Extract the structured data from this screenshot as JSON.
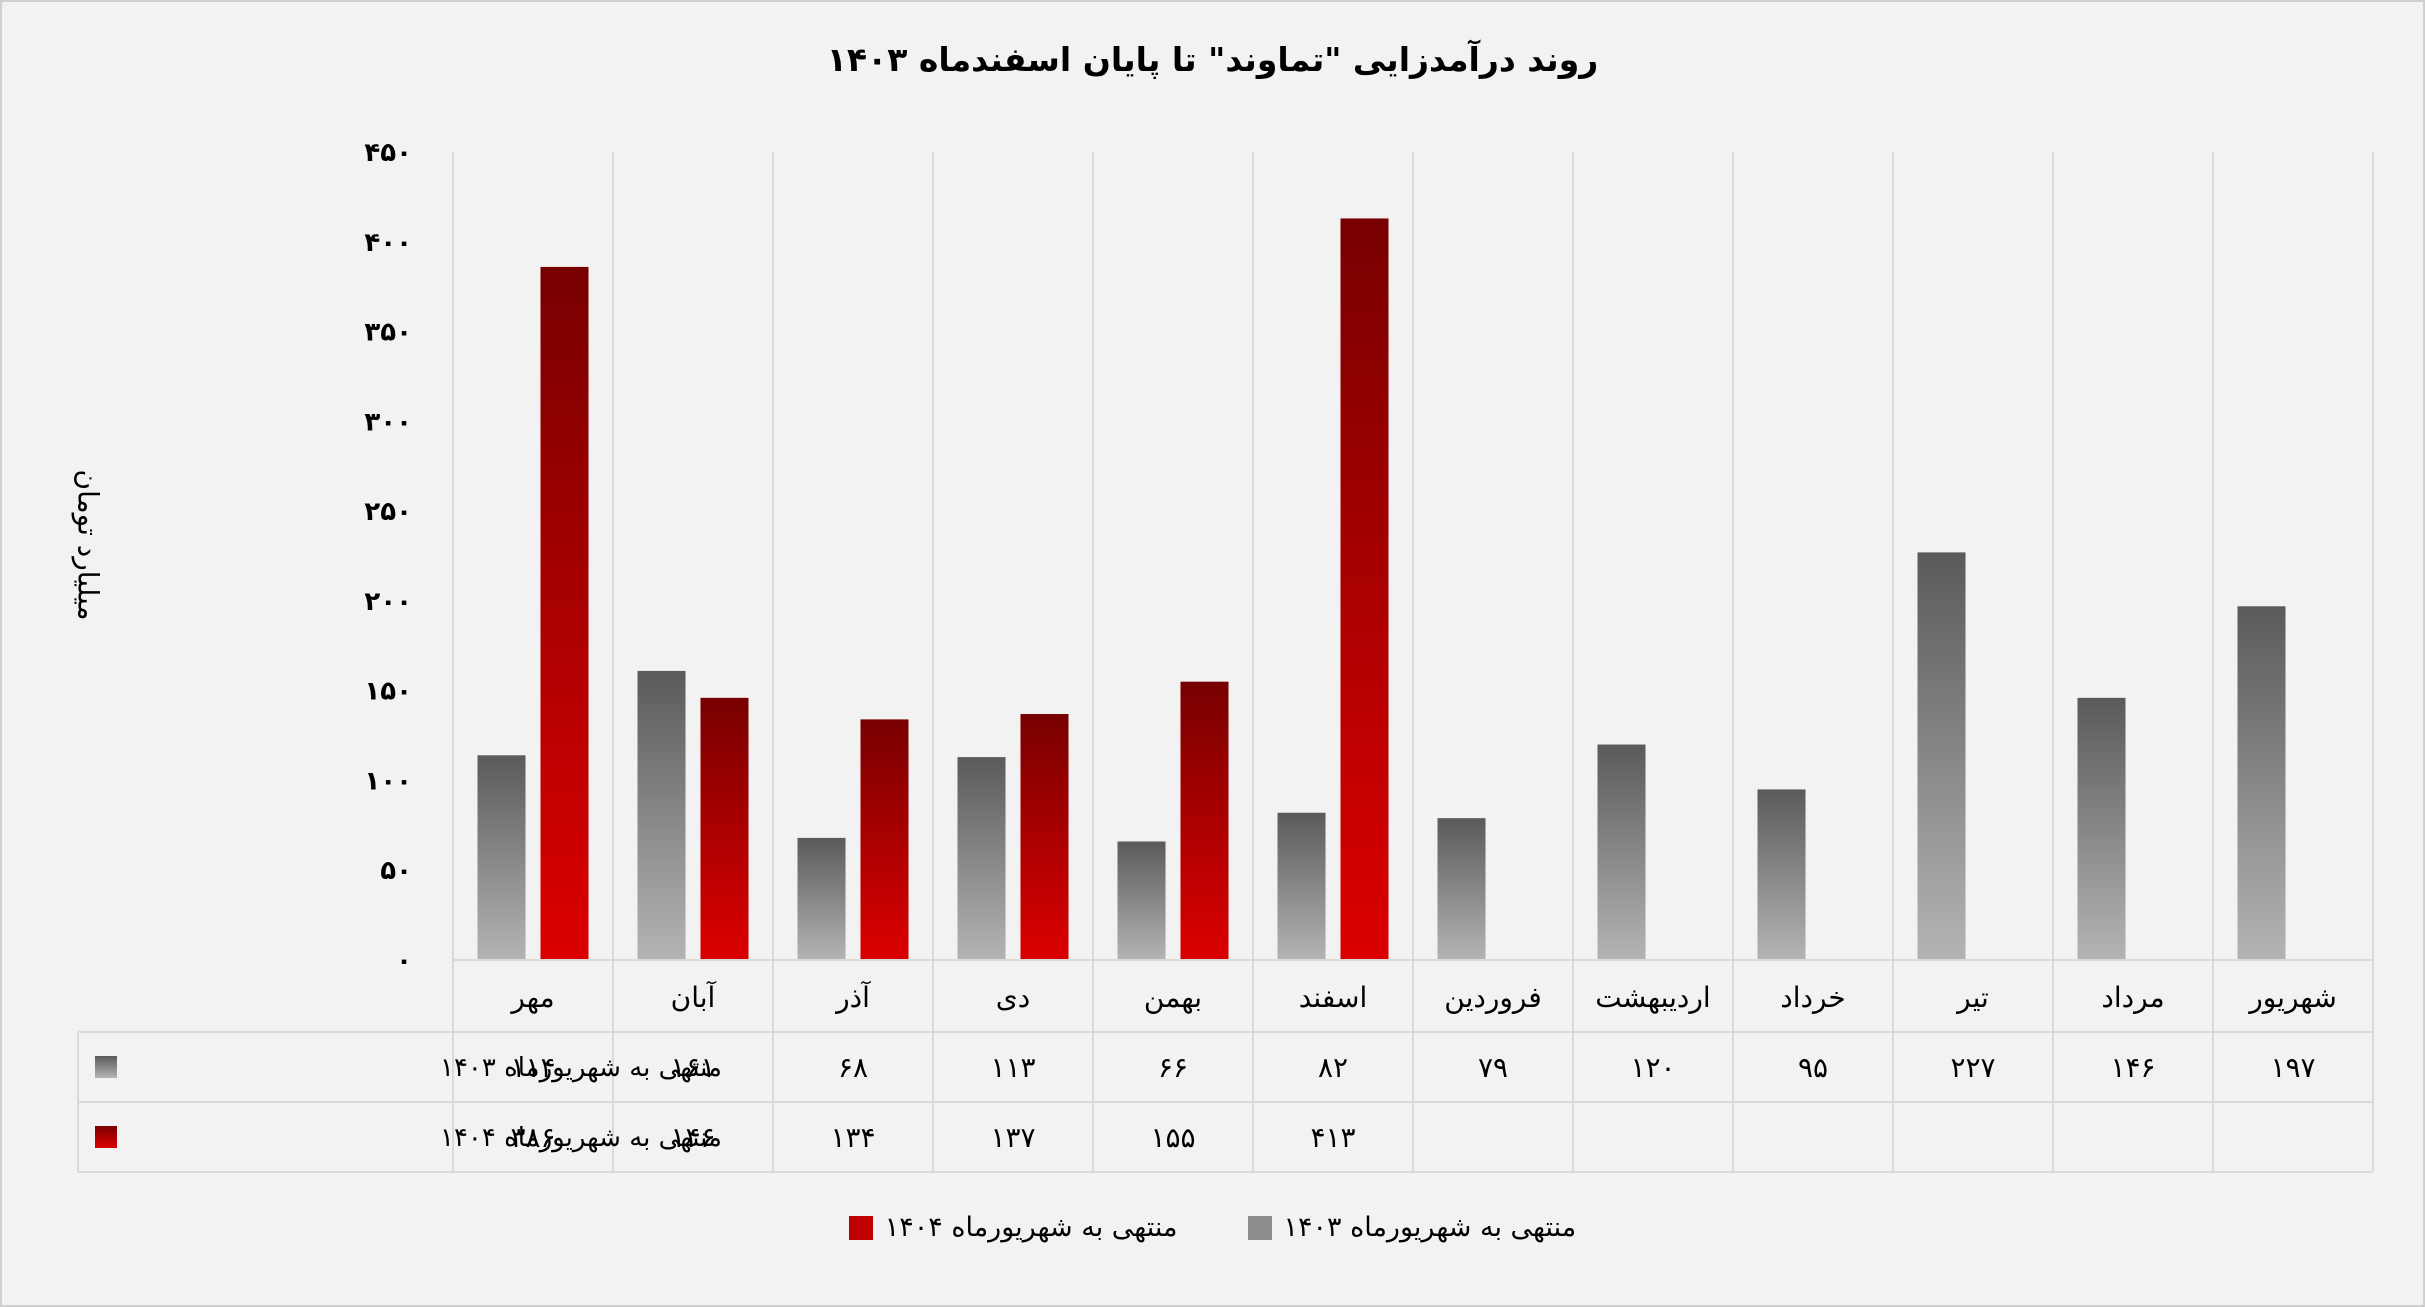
{
  "chart_data": {
    "type": "bar",
    "title": "روند درآمدزایی \"تماوند\" تا پایان اسفندماه  ۱۴۰۳",
    "ylabel": "میلیارد تومان",
    "xlabel": "",
    "ylim": [
      0,
      450
    ],
    "yticks": [
      0,
      50,
      100,
      150,
      200,
      250,
      300,
      350,
      400,
      450
    ],
    "ytick_labels": [
      "۰",
      "۵۰",
      "۱۰۰",
      "۱۵۰",
      "۲۰۰",
      "۲۵۰",
      "۳۰۰",
      "۳۵۰",
      "۴۰۰",
      "۴۵۰"
    ],
    "grid": true,
    "legend_position": "bottom",
    "has_data_table": true,
    "categories": [
      "مهر",
      "آبان",
      "آذر",
      "دی",
      "بهمن",
      "اسفند",
      "فروردین",
      "اردیبهشت",
      "خرداد",
      "تیر",
      "مرداد",
      "شهریور"
    ],
    "series": [
      {
        "name": "منتهی به شهریورماه ۱۴۰۳",
        "color": "#7a7a7a",
        "gradient": [
          "#5a5a5a",
          "#b4b4b4"
        ],
        "values": [
          114,
          161,
          68,
          113,
          66,
          82,
          79,
          120,
          95,
          227,
          146,
          197
        ],
        "value_labels": [
          "۱۱۴",
          "۱۶۱",
          "۶۸",
          "۱۱۳",
          "۶۶",
          "۸۲",
          "۷۹",
          "۱۲۰",
          "۹۵",
          "۲۲۷",
          "۱۴۶",
          "۱۹۷"
        ]
      },
      {
        "name": "منتهی به شهریورماه ۱۴۰۴",
        "color": "#c00000",
        "gradient": [
          "#780000",
          "#dc0000"
        ],
        "values": [
          386,
          146,
          134,
          137,
          155,
          413,
          null,
          null,
          null,
          null,
          null,
          null
        ],
        "value_labels": [
          "۳۸۶",
          "۱۴۶",
          "۱۳۴",
          "۱۳۷",
          "۱۵۵",
          "۴۱۳",
          "",
          "",
          "",
          "",
          "",
          ""
        ]
      }
    ]
  }
}
